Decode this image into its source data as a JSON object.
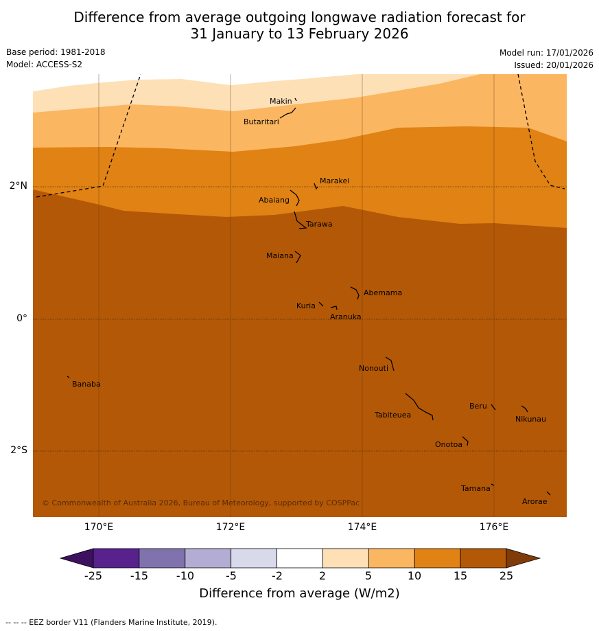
{
  "title": {
    "line1": "Difference from average outgoing longwave radiation forecast for",
    "line2": "31 January to 13 February 2026"
  },
  "meta": {
    "base_period": "Base period: 1981-2018",
    "model": "Model: ACCESS-S2",
    "model_run": "Model run: 17/01/2026",
    "issued": "Issued: 20/01/2026"
  },
  "map": {
    "lon_labels": [
      "170°E",
      "172°E",
      "174°E",
      "176°E"
    ],
    "lat_labels": [
      "2°N",
      "0°",
      "2°S"
    ],
    "copyright": "© Commonwealth of Australia 2026, Bureau of Meteorology, supported by COSPPac",
    "places": [
      "Makin",
      "Butaritari",
      "Marakei",
      "Abaiang",
      "Tarawa",
      "Maiana",
      "Abemama",
      "Kuria",
      "Aranuka",
      "Nonouti",
      "Banaba",
      "Beru",
      "Nikunau",
      "Tabiteuea",
      "Onotoa",
      "Tamana",
      "Arorae"
    ]
  },
  "colorbar": {
    "ticks": [
      "-25",
      "-15",
      "-10",
      "-5",
      "-2",
      "2",
      "5",
      "10",
      "15",
      "25"
    ],
    "colors": [
      "#57228b",
      "#8073ad",
      "#b3acd3",
      "#d9d9ec",
      "#ffffff",
      "#fee0b7",
      "#fbb661",
      "#e08214",
      "#b35806"
    ],
    "under_color": "#3e1060",
    "over_color": "#7f3b08",
    "label": "Difference from average (W/m2)"
  },
  "footnote": "--  --  -- EEZ border V11 (Flanders Marine Institute, 2019)."
}
